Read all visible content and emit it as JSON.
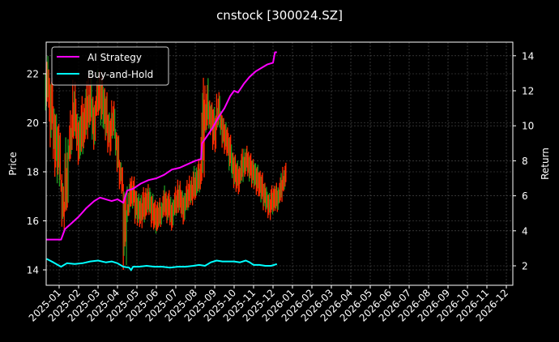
{
  "chart_data": {
    "type": "line",
    "title": "cnstock [300024.SZ]",
    "xlabel": "",
    "ylabel": "Price",
    "ylabel_right": "Return",
    "ylim": [
      13.7,
      23.2
    ],
    "ylim_right": [
      1.2,
      14.8
    ],
    "grid": true,
    "legend_position": "upper left",
    "x_ticks": [
      "2025-01",
      "2025-02",
      "2025-03",
      "2025-04",
      "2025-05",
      "2025-06",
      "2025-07",
      "2025-08",
      "2025-09",
      "2025-10",
      "2025-11",
      "2025-12",
      "2026-01",
      "2026-02",
      "2026-03",
      "2026-04",
      "2026-05",
      "2026-06",
      "2026-07",
      "2026-08",
      "2026-09",
      "2026-10",
      "2026-11",
      "2026-12"
    ],
    "y_ticks_left": [
      14,
      16,
      18,
      20,
      22
    ],
    "y_ticks_right": [
      2,
      4,
      6,
      8,
      10,
      12,
      14
    ],
    "colors": {
      "background": "#000000",
      "ai_strategy": "#ff00ff",
      "buy_and_hold": "#00ffff",
      "candle_up": "#ff2a00",
      "candle_down": "#1f9a1f",
      "grid": "#555555",
      "frame": "#ffffff"
    },
    "price_series": {
      "name": "Price",
      "axis": "left",
      "x_month": [
        -0.7,
        -0.5,
        -0.3,
        -0.1,
        0.1,
        0.3,
        0.5,
        0.7,
        0.9,
        1.1,
        1.3,
        1.5,
        1.7,
        1.9,
        2.1,
        2.3,
        2.5,
        2.7,
        2.9,
        3.1,
        3.3,
        3.5,
        3.7,
        3.9,
        4.1,
        4.3,
        4.5,
        4.7,
        4.9,
        5.1,
        5.3,
        5.5,
        5.7,
        5.9,
        6.1,
        6.3,
        6.5,
        6.7,
        6.9,
        7.1,
        7.3,
        7.5,
        7.7,
        7.9,
        8.1,
        8.3,
        8.5,
        8.7,
        8.9,
        9.1,
        9.3,
        9.5,
        9.7,
        9.9,
        10.1,
        10.3,
        10.5,
        10.7,
        10.9,
        11.1,
        11.3,
        11.5
      ],
      "values": [
        21.5,
        20.8,
        19.6,
        18.9,
        16.3,
        17.2,
        19.5,
        20.2,
        19.0,
        19.8,
        20.3,
        20.6,
        19.9,
        21.4,
        21.0,
        20.1,
        19.6,
        20.2,
        18.6,
        17.7,
        15.6,
        16.9,
        17.2,
        16.5,
        16.4,
        16.6,
        16.9,
        16.3,
        15.9,
        16.2,
        16.7,
        16.5,
        16.2,
        16.8,
        16.9,
        16.4,
        17.0,
        17.1,
        17.3,
        17.7,
        19.8,
        20.6,
        20.3,
        19.6,
        20.9,
        19.7,
        19.3,
        18.7,
        18.0,
        17.6,
        18.2,
        18.5,
        18.3,
        18.0,
        17.7,
        17.4,
        17.0,
        16.6,
        16.9,
        16.8,
        17.3,
        17.9
      ],
      "highs": [
        22.8,
        21.9,
        20.6,
        20.1,
        17.5,
        19.8,
        20.8,
        21.9,
        20.4,
        21.2,
        21.8,
        22.3,
        21.2,
        22.5,
        22.2,
        21.5,
        20.5,
        21.0,
        19.6,
        18.4,
        17.2,
        17.8,
        18.0,
        17.3,
        17.2,
        17.5,
        17.6,
        17.2,
        16.9,
        17.0,
        17.5,
        17.3,
        17.1,
        17.6,
        17.8,
        17.3,
        17.8,
        17.9,
        18.3,
        18.6,
        22.0,
        21.9,
        21.0,
        20.8,
        21.4,
        20.3,
        20.1,
        19.6,
        18.8,
        18.5,
        19.0,
        19.1,
        18.9,
        18.6,
        18.4,
        18.1,
        17.6,
        17.2,
        17.5,
        17.6,
        18.0,
        18.4
      ],
      "lows": [
        20.5,
        19.0,
        17.8,
        17.4,
        15.6,
        16.4,
        18.7,
        19.3,
        18.1,
        18.6,
        19.2,
        19.8,
        18.9,
        20.3,
        19.8,
        19.2,
        18.6,
        19.3,
        17.8,
        17.0,
        14.0,
        16.2,
        16.5,
        15.8,
        15.7,
        15.9,
        16.2,
        15.6,
        15.4,
        15.7,
        16.1,
        15.9,
        15.6,
        16.2,
        16.3,
        15.8,
        16.4,
        16.6,
        16.8,
        17.1,
        17.5,
        19.6,
        19.5,
        18.8,
        19.8,
        18.9,
        18.6,
        17.9,
        17.2,
        17.0,
        17.5,
        17.8,
        17.6,
        17.3,
        17.0,
        16.7,
        16.3,
        16.0,
        16.2,
        16.3,
        16.7,
        17.2
      ]
    },
    "series": [
      {
        "name": "AI Strategy",
        "axis": "right",
        "x_month": [
          -0.7,
          -0.3,
          0.1,
          0.3,
          0.6,
          1.0,
          1.4,
          1.8,
          2.1,
          2.4,
          2.7,
          3.0,
          3.3,
          3.5,
          3.8,
          4.2,
          4.6,
          5.0,
          5.4,
          5.8,
          6.2,
          6.6,
          7.0,
          7.3,
          7.35,
          7.6,
          7.9,
          8.2,
          8.5,
          8.8,
          9.0,
          9.2,
          9.5,
          9.8,
          10.1,
          10.4,
          10.7,
          11.0,
          11.1,
          11.2
        ],
        "values": [
          3.5,
          3.5,
          3.5,
          4.1,
          4.4,
          4.8,
          5.3,
          5.7,
          5.9,
          5.8,
          5.7,
          5.8,
          5.6,
          6.3,
          6.4,
          6.7,
          6.9,
          7.0,
          7.2,
          7.5,
          7.6,
          7.8,
          8.0,
          8.1,
          9.0,
          9.4,
          9.9,
          10.5,
          11.0,
          11.7,
          12.0,
          11.9,
          12.4,
          12.8,
          13.1,
          13.3,
          13.5,
          13.6,
          14.2,
          14.2
        ]
      },
      {
        "name": "Buy-and-Hold",
        "axis": "right",
        "x_month": [
          -0.7,
          -0.3,
          0.1,
          0.4,
          0.8,
          1.2,
          1.6,
          2.0,
          2.4,
          2.7,
          3.0,
          3.3,
          3.6,
          3.7,
          3.8,
          4.1,
          4.5,
          4.9,
          5.3,
          5.7,
          6.1,
          6.5,
          6.9,
          7.2,
          7.5,
          7.8,
          8.1,
          8.4,
          8.7,
          9.0,
          9.3,
          9.6,
          9.8,
          10.0,
          10.3,
          10.6,
          10.9,
          11.2
        ],
        "values": [
          2.4,
          2.2,
          1.95,
          2.15,
          2.1,
          2.15,
          2.25,
          2.3,
          2.2,
          2.25,
          2.15,
          1.95,
          1.9,
          1.75,
          1.95,
          1.95,
          2.0,
          1.95,
          1.95,
          1.9,
          1.95,
          1.95,
          2.0,
          2.05,
          2.0,
          2.2,
          2.3,
          2.25,
          2.25,
          2.25,
          2.2,
          2.3,
          2.2,
          2.05,
          2.05,
          2.0,
          2.0,
          2.1
        ]
      }
    ]
  },
  "legend": {
    "items": [
      {
        "label": "AI Strategy",
        "color": "#ff00ff"
      },
      {
        "label": "Buy-and-Hold",
        "color": "#00ffff"
      }
    ]
  }
}
